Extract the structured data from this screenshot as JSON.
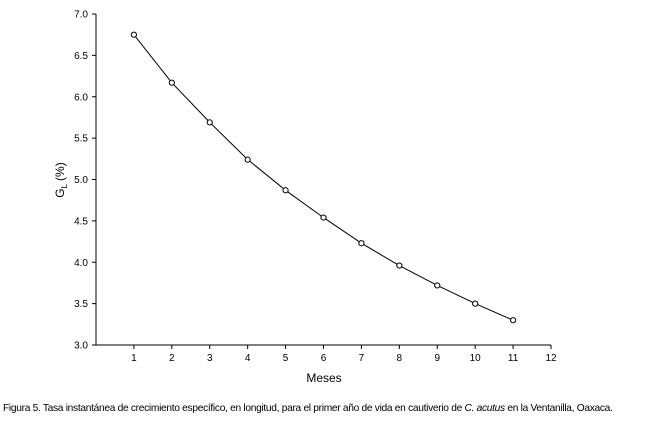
{
  "chart_data": {
    "type": "line",
    "xlabel": "Meses",
    "ylabel": "G",
    "ylabel_subscript": "L",
    "ylabel_unit": "(%)",
    "xlim": [
      0,
      12
    ],
    "ylim": [
      3.0,
      7.0
    ],
    "x_ticks": [
      "1",
      "2",
      "3",
      "4",
      "5",
      "6",
      "7",
      "8",
      "9",
      "10",
      "11",
      "12"
    ],
    "y_ticks": [
      "3.0",
      "3.5",
      "4.0",
      "4.5",
      "5.0",
      "5.5",
      "6.0",
      "6.5",
      "7.0"
    ],
    "grid": false,
    "marker": "open-circle",
    "series": [
      {
        "x": [
          1,
          2,
          3,
          4,
          5,
          6,
          7,
          8,
          9,
          10,
          11
        ],
        "values": [
          6.75,
          6.17,
          5.69,
          5.24,
          4.87,
          4.54,
          4.23,
          3.96,
          3.72,
          3.5,
          3.3
        ]
      }
    ]
  },
  "caption": {
    "prefix": "Figura 5. Tasa instantánea de crecimiento específico, en longitud, para el primer año de vida en cautiverio de ",
    "species": "C. acutus",
    "suffix": " en la Ventanilla, Oaxaca."
  }
}
